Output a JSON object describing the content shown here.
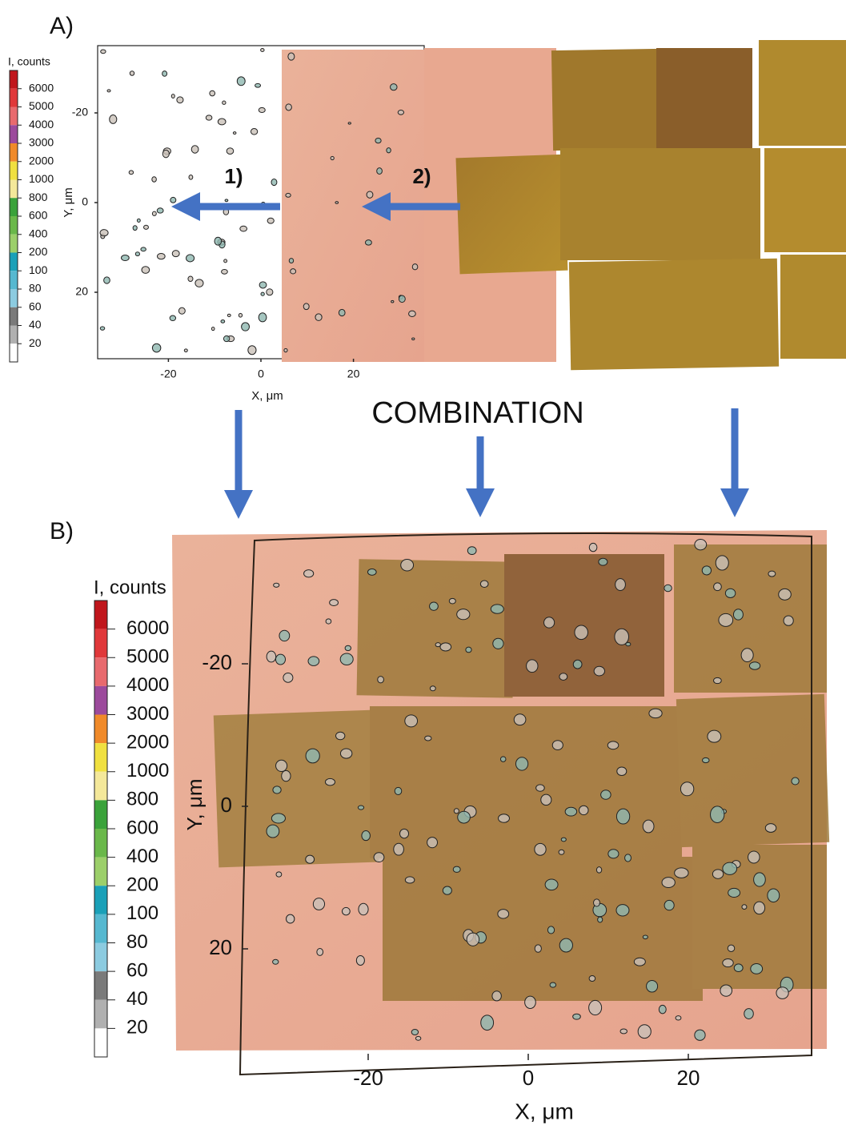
{
  "panel_a": {
    "label": "A)",
    "colorbar": {
      "title": "I, counts",
      "ticks": [
        6000,
        5000,
        4000,
        3000,
        2000,
        1000,
        800,
        600,
        400,
        200,
        100,
        80,
        60,
        40,
        20
      ],
      "colors": [
        "#c0161c",
        "#e0383a",
        "#e86a6e",
        "#9c4a9c",
        "#f08a2a",
        "#f0e040",
        "#f4e89a",
        "#3aa23a",
        "#6ab84a",
        "#9ccf6a",
        "#1aa0b8",
        "#56b8d0",
        "#8ccbe0",
        "#7a7a7a",
        "#b0b0b0",
        "#ffffff"
      ]
    },
    "x_label": "X, μm",
    "y_label": "Y, μm",
    "x_ticks": [
      -20,
      0,
      20
    ],
    "y_ticks": [
      -20,
      0,
      20
    ],
    "arrows": [
      "1)",
      "2)"
    ]
  },
  "combination": "COMBINATION",
  "panel_b": {
    "label": "B)",
    "colorbar": {
      "title": "I, counts",
      "ticks": [
        6000,
        5000,
        4000,
        3000,
        2000,
        1000,
        800,
        600,
        400,
        200,
        100,
        80,
        60,
        40,
        20
      ],
      "colors": [
        "#c0161c",
        "#e0383a",
        "#e86a6e",
        "#9c4a9c",
        "#f08a2a",
        "#f0e040",
        "#f4e89a",
        "#3aa23a",
        "#6ab84a",
        "#9ccf6a",
        "#1aa0b8",
        "#56b8d0",
        "#8ccbe0",
        "#7a7a7a",
        "#b0b0b0",
        "#ffffff"
      ]
    },
    "x_label": "X, μm",
    "y_label": "Y, μm",
    "x_ticks": [
      -20,
      0,
      20
    ],
    "y_ticks": [
      -20,
      0,
      20
    ]
  }
}
